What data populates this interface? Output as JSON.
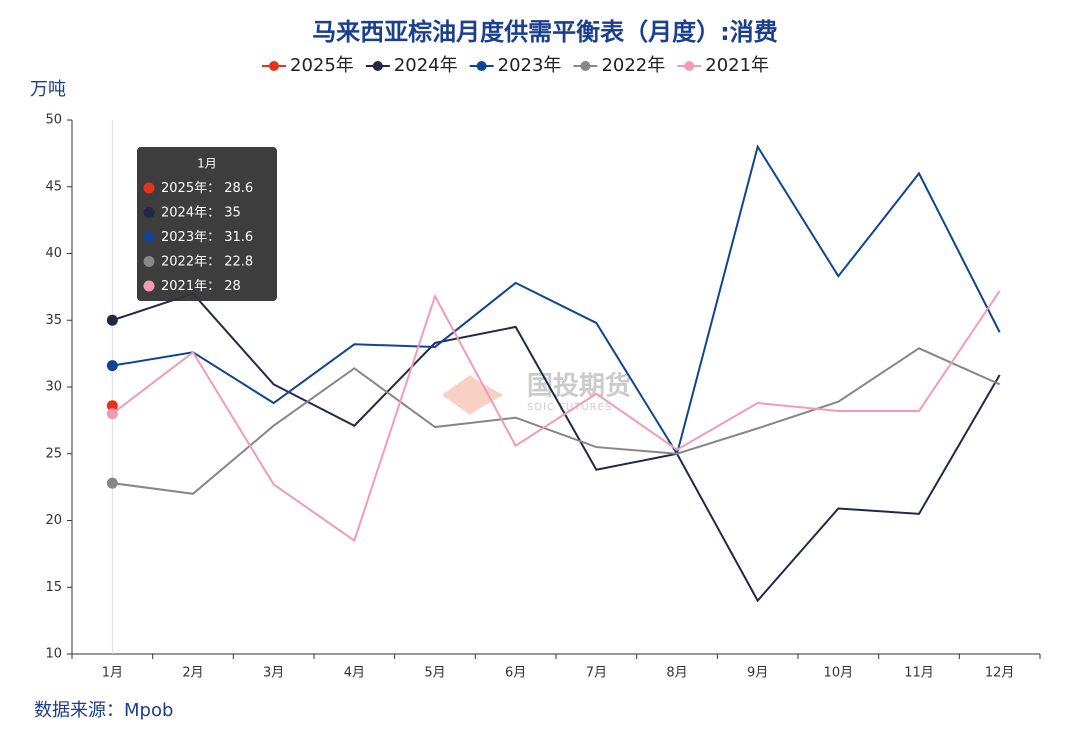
{
  "chart_data": {
    "type": "line",
    "title": "马来西亚棕油月度供需平衡表（月度）:消费",
    "y_label": "万吨",
    "source": "数据来源：Mpob",
    "watermark": "国投期货",
    "watermark_sub": "SDIC FUTURES",
    "tooltip_separator": "： ",
    "categories": [
      "1月",
      "2月",
      "3月",
      "4月",
      "5月",
      "6月",
      "7月",
      "8月",
      "9月",
      "10月",
      "11月",
      "12月"
    ],
    "series": [
      {
        "name": "2025年",
        "color": "#e8321e",
        "values": [
          28.6,
          null,
          null,
          null,
          null,
          null,
          null,
          null,
          null,
          null,
          null,
          null
        ]
      },
      {
        "name": "2024年",
        "color": "#23284a",
        "values": [
          35,
          37.0,
          30.2,
          27.1,
          33.3,
          34.5,
          23.8,
          25,
          14.0,
          20.9,
          20.5,
          30.9
        ]
      },
      {
        "name": "2023年",
        "color": "#0f4496",
        "values": [
          31.6,
          32.6,
          28.8,
          33.2,
          33,
          37.8,
          34.8,
          25,
          48.0,
          38.3,
          46.0,
          34.1
        ]
      },
      {
        "name": "2022年",
        "color": "#878787",
        "values": [
          22.8,
          22,
          27.1,
          31.4,
          27,
          27.7,
          25.5,
          25,
          26.9,
          28.9,
          32.9,
          30.2
        ]
      },
      {
        "name": "2021年",
        "color": "#f59ab5",
        "values": [
          28,
          32.6,
          22.7,
          18.5,
          36.8,
          25.6,
          29.5,
          25.3,
          28.8,
          28.2,
          28.2,
          37.2
        ]
      }
    ],
    "ylim": [
      10,
      50
    ],
    "yticks": [
      10,
      15,
      20,
      25,
      30,
      35,
      40,
      45,
      50
    ],
    "legend": "top",
    "grid": false
  }
}
